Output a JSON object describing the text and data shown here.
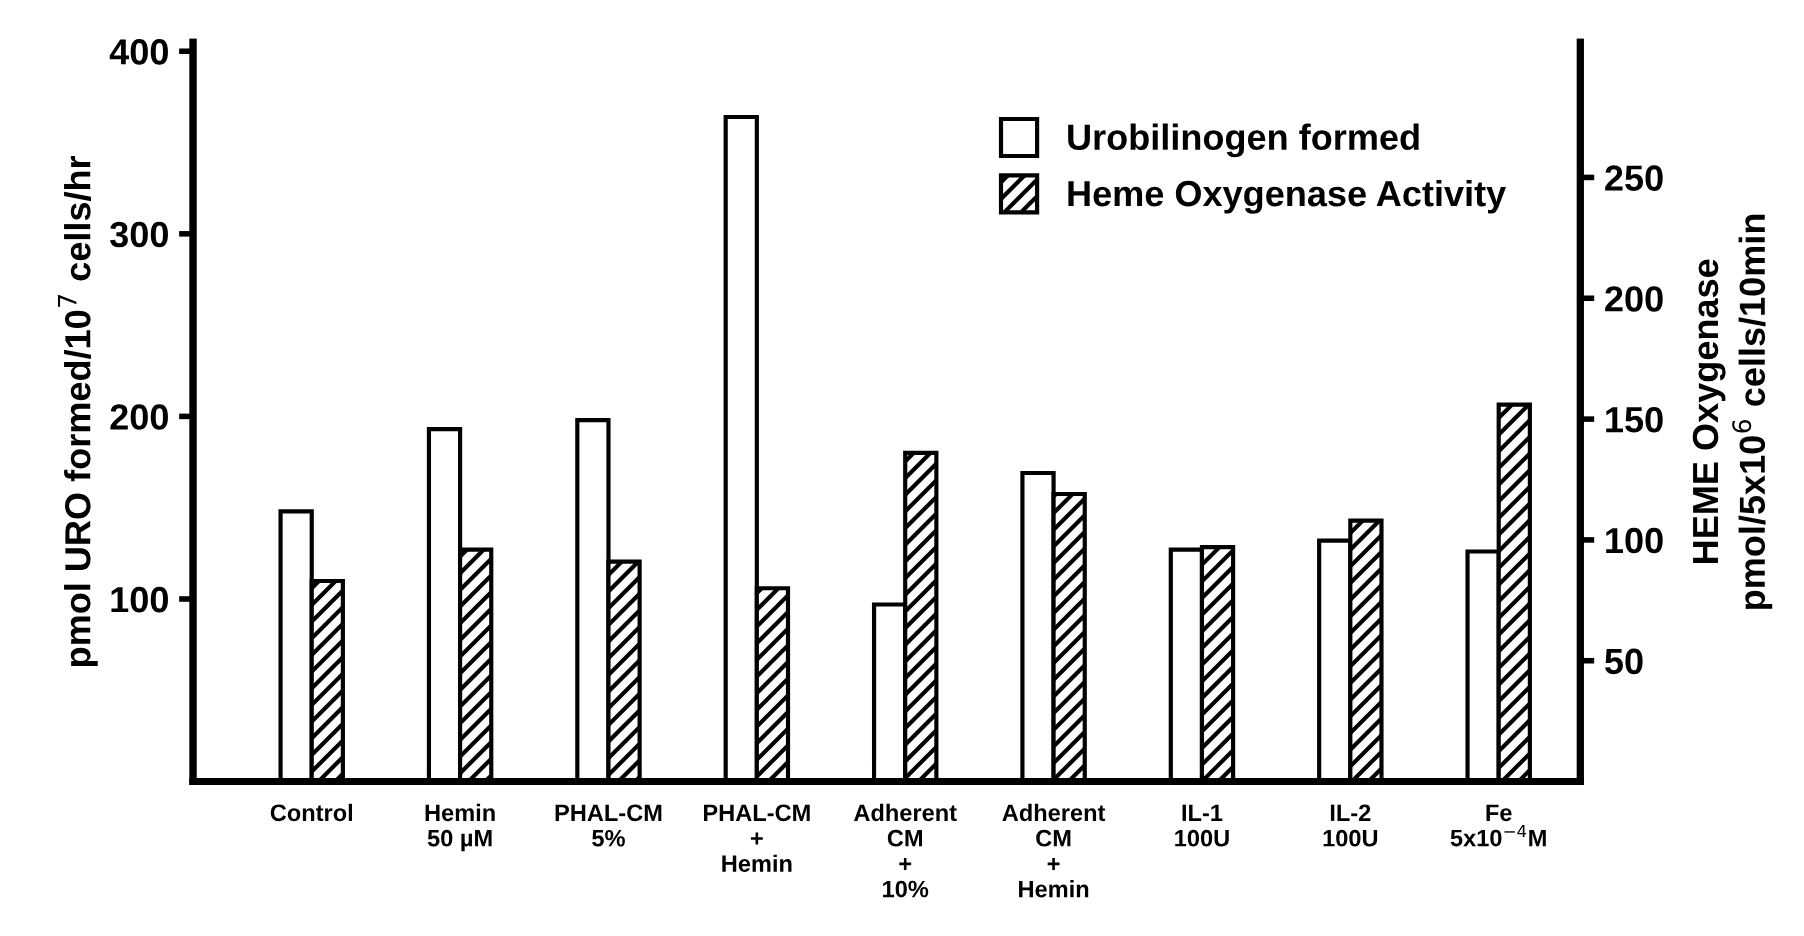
{
  "chart_data": {
    "type": "bar",
    "ylabel": "pmol URO formed/10$^{7}$ cells/hr",
    "y2label": "HEME Oxygenase\npmol/5x10$^{6}$ cells/10min",
    "categories": [
      "Control",
      "Hemin\n50 µM",
      "PHAL-CM\n5%",
      "PHAL-CM\n+\nHemin",
      "Adherent\nCM\n+\n10%",
      "Adherent\nCM\n+\nHemin",
      "IL-1\n100U",
      "IL-2\n100U",
      "Fe\n5x10$^{−4}$M"
    ],
    "series": [
      {
        "name": "Urobilinogen formed",
        "color": "#ffffff",
        "values": [
          148,
          193,
          198,
          364,
          97,
          169,
          127,
          132,
          126
        ]
      },
      {
        "name": "Heme Oxygenase Activity",
        "color": "#000000",
        "axis": "y2",
        "values": [
          83,
          96,
          91,
          80,
          136,
          119,
          97,
          108,
          156
        ]
      }
    ],
    "ylim": [
      0,
      405
    ],
    "yticks": [
      100,
      200,
      300,
      400
    ],
    "y2lim": [
      0,
      306
    ],
    "y2ticks": [
      50,
      100,
      150,
      200,
      250
    ],
    "grid": false,
    "legend": "top right"
  }
}
